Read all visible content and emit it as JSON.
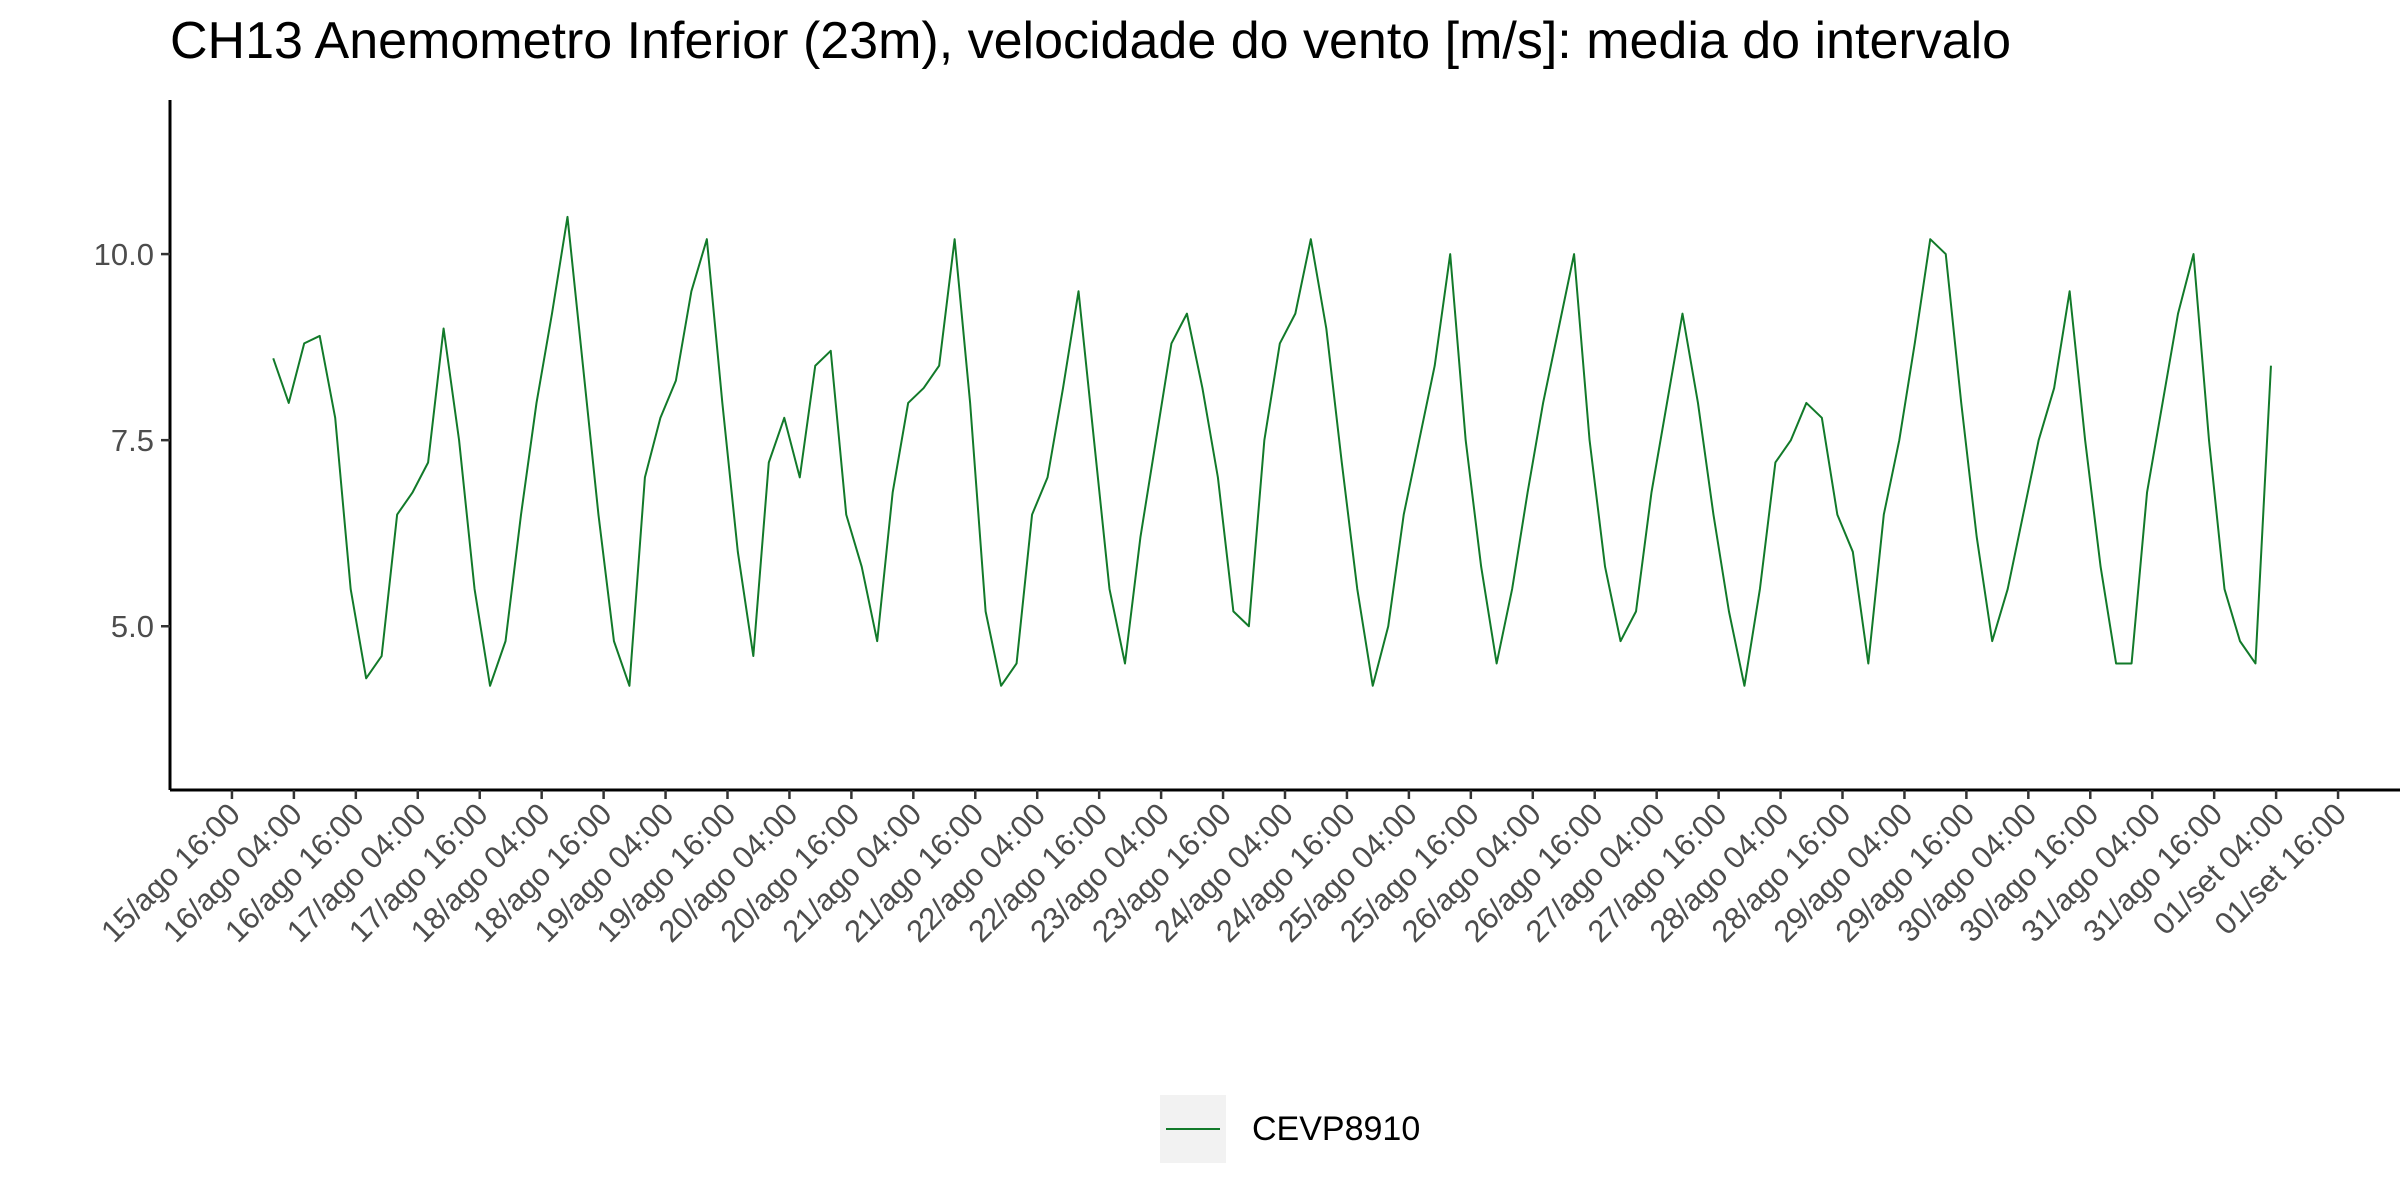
{
  "chart_data": {
    "type": "line",
    "title": "CH13 Anemometro Inferior (23m), velocidade do vento [m/s]: media do intervalo",
    "x": [
      "16/ago 00:00",
      "16/ago 03:00",
      "16/ago 06:00",
      "16/ago 09:00",
      "16/ago 12:00",
      "16/ago 15:00",
      "16/ago 18:00",
      "16/ago 21:00",
      "17/ago 00:00",
      "17/ago 03:00",
      "17/ago 06:00",
      "17/ago 09:00",
      "17/ago 12:00",
      "17/ago 15:00",
      "17/ago 18:00",
      "17/ago 21:00",
      "18/ago 00:00",
      "18/ago 03:00",
      "18/ago 06:00",
      "18/ago 09:00",
      "18/ago 12:00",
      "18/ago 15:00",
      "18/ago 18:00",
      "18/ago 21:00",
      "19/ago 00:00",
      "19/ago 03:00",
      "19/ago 06:00",
      "19/ago 09:00",
      "19/ago 12:00",
      "19/ago 15:00",
      "19/ago 18:00",
      "19/ago 21:00",
      "20/ago 00:00",
      "20/ago 03:00",
      "20/ago 06:00",
      "20/ago 09:00",
      "20/ago 12:00",
      "20/ago 15:00",
      "20/ago 18:00",
      "20/ago 21:00",
      "21/ago 00:00",
      "21/ago 03:00",
      "21/ago 06:00",
      "21/ago 09:00",
      "21/ago 12:00",
      "21/ago 15:00",
      "21/ago 18:00",
      "21/ago 21:00",
      "22/ago 00:00",
      "22/ago 03:00",
      "22/ago 06:00",
      "22/ago 09:00",
      "22/ago 12:00",
      "22/ago 15:00",
      "22/ago 18:00",
      "22/ago 21:00",
      "23/ago 00:00",
      "23/ago 03:00",
      "23/ago 06:00",
      "23/ago 09:00",
      "23/ago 12:00",
      "23/ago 15:00",
      "23/ago 18:00",
      "23/ago 21:00",
      "24/ago 00:00",
      "24/ago 03:00",
      "24/ago 06:00",
      "24/ago 09:00",
      "24/ago 12:00",
      "24/ago 15:00",
      "24/ago 18:00",
      "24/ago 21:00",
      "25/ago 00:00",
      "25/ago 03:00",
      "25/ago 06:00",
      "25/ago 09:00",
      "25/ago 12:00",
      "25/ago 15:00",
      "25/ago 18:00",
      "25/ago 21:00",
      "26/ago 00:00",
      "26/ago 03:00",
      "26/ago 06:00",
      "26/ago 09:00",
      "26/ago 12:00",
      "26/ago 15:00",
      "26/ago 18:00",
      "26/ago 21:00",
      "27/ago 00:00",
      "27/ago 03:00",
      "27/ago 06:00",
      "27/ago 09:00",
      "27/ago 12:00",
      "27/ago 15:00",
      "27/ago 18:00",
      "27/ago 21:00",
      "28/ago 00:00",
      "28/ago 03:00",
      "28/ago 06:00",
      "28/ago 09:00",
      "28/ago 12:00",
      "28/ago 15:00",
      "28/ago 18:00",
      "28/ago 21:00",
      "29/ago 00:00",
      "29/ago 03:00",
      "29/ago 06:00",
      "29/ago 09:00",
      "29/ago 12:00",
      "29/ago 15:00",
      "29/ago 18:00",
      "29/ago 21:00",
      "30/ago 00:00",
      "30/ago 03:00",
      "30/ago 06:00",
      "30/ago 09:00",
      "30/ago 12:00",
      "30/ago 15:00",
      "30/ago 18:00",
      "30/ago 21:00",
      "31/ago 00:00",
      "31/ago 03:00",
      "31/ago 06:00",
      "31/ago 09:00",
      "31/ago 12:00",
      "31/ago 15:00",
      "31/ago 18:00",
      "31/ago 21:00",
      "01/set 00:00",
      "01/set 03:00"
    ],
    "series": [
      {
        "name": "CEVP8910",
        "color": "#127a2a",
        "values": [
          8.6,
          8.0,
          8.8,
          8.9,
          7.8,
          5.5,
          4.3,
          4.6,
          6.5,
          6.8,
          7.2,
          9.0,
          7.5,
          5.5,
          4.2,
          4.8,
          6.5,
          8.0,
          9.2,
          10.5,
          8.5,
          6.5,
          4.8,
          4.2,
          7.0,
          7.8,
          8.3,
          9.5,
          10.2,
          8.0,
          6.0,
          4.6,
          7.2,
          7.8,
          7.0,
          8.5,
          8.7,
          6.5,
          5.8,
          4.8,
          6.8,
          8.0,
          8.2,
          8.5,
          10.2,
          8.0,
          5.2,
          4.2,
          4.5,
          6.5,
          7.0,
          8.2,
          9.5,
          7.5,
          5.5,
          4.5,
          6.2,
          7.5,
          8.8,
          9.2,
          8.2,
          7.0,
          5.2,
          5.0,
          7.5,
          8.8,
          9.2,
          10.2,
          9.0,
          7.2,
          5.5,
          4.2,
          5.0,
          6.5,
          7.5,
          8.5,
          10.0,
          7.5,
          5.8,
          4.5,
          5.5,
          6.8,
          8.0,
          9.0,
          10.0,
          7.5,
          5.8,
          4.8,
          5.2,
          6.8,
          8.0,
          9.2,
          8.0,
          6.5,
          5.2,
          4.2,
          5.5,
          7.2,
          7.5,
          8.0,
          7.8,
          6.5,
          6.0,
          4.5,
          6.5,
          7.5,
          8.8,
          10.2,
          10.0,
          8.0,
          6.2,
          4.8,
          5.5,
          6.5,
          7.5,
          8.2,
          9.5,
          7.5,
          5.8,
          4.5,
          4.5,
          6.8,
          8.0,
          9.2,
          10.0,
          7.5,
          5.5,
          4.8,
          4.5,
          8.5
        ]
      }
    ],
    "xlim": [
      "15/ago 04:00",
      "02/set 04:00"
    ],
    "xticks": [
      "15/ago 16:00",
      "16/ago 04:00",
      "16/ago 16:00",
      "17/ago 04:00",
      "17/ago 16:00",
      "18/ago 04:00",
      "18/ago 16:00",
      "19/ago 04:00",
      "19/ago 16:00",
      "20/ago 04:00",
      "20/ago 16:00",
      "21/ago 04:00",
      "21/ago 16:00",
      "22/ago 04:00",
      "22/ago 16:00",
      "23/ago 04:00",
      "23/ago 16:00",
      "24/ago 04:00",
      "24/ago 16:00",
      "25/ago 04:00",
      "25/ago 16:00",
      "26/ago 04:00",
      "26/ago 16:00",
      "27/ago 04:00",
      "27/ago 16:00",
      "28/ago 04:00",
      "28/ago 16:00",
      "29/ago 04:00",
      "29/ago 16:00",
      "30/ago 04:00",
      "30/ago 16:00",
      "31/ago 04:00",
      "31/ago 16:00",
      "01/set 04:00",
      "01/set 16:00"
    ],
    "ylim": [
      2.8,
      12.07
    ],
    "yticks": [
      {
        "value": 5,
        "label": "5.0"
      },
      7.5,
      {
        "value": 10,
        "label": "10.0"
      }
    ],
    "grid": false,
    "legend": "bottom"
  }
}
